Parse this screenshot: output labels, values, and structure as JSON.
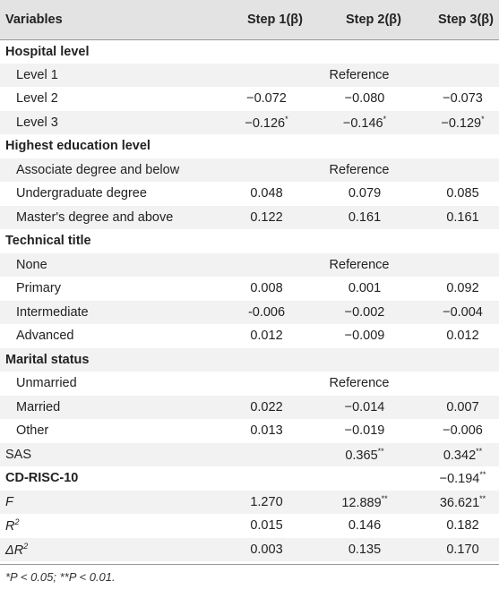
{
  "header": {
    "variables": "Variables",
    "step1": "Step 1(β)",
    "step2": "Step 2(β)",
    "step3": "Step 3(β)"
  },
  "rows": [
    {
      "label": "Hospital level",
      "type": "head",
      "s1": "",
      "s2": "",
      "s3": ""
    },
    {
      "label": "Level 1",
      "type": "sub",
      "ref": "Reference"
    },
    {
      "label": "Level 2",
      "type": "sub",
      "s1": "−0.072",
      "s2": "−0.080",
      "s3": "−0.073"
    },
    {
      "label": "Level 3",
      "type": "sub",
      "s1": "−0.126",
      "s1sup": "*",
      "s2": "−0.146",
      "s2sup": "*",
      "s3": "−0.129",
      "s3sup": "*"
    },
    {
      "label": "Highest education level",
      "type": "head"
    },
    {
      "label": "Associate degree and below",
      "type": "sub",
      "ref": "Reference"
    },
    {
      "label": "Undergraduate degree",
      "type": "sub",
      "s1": "0.048",
      "s2": "0.079",
      "s3": "0.085"
    },
    {
      "label": "Master's degree and above",
      "type": "sub",
      "s1": "0.122",
      "s2": "0.161",
      "s3": "0.161"
    },
    {
      "label": "Technical title",
      "type": "head"
    },
    {
      "label": "None",
      "type": "sub",
      "ref": "Reference"
    },
    {
      "label": "Primary",
      "type": "sub",
      "s1": "0.008",
      "s2": "0.001",
      "s3": "0.092"
    },
    {
      "label": "Intermediate",
      "type": "sub",
      "s1": "-0.006",
      "s2": "−0.002",
      "s3": "−0.004"
    },
    {
      "label": "Advanced",
      "type": "sub",
      "s1": "0.012",
      "s2": "−0.009",
      "s3": "0.012"
    },
    {
      "label": "Marital status",
      "type": "head"
    },
    {
      "label": "Unmarried",
      "type": "sub",
      "ref": "Reference"
    },
    {
      "label": "Married",
      "type": "sub",
      "s1": "0.022",
      "s2": "−0.014",
      "s3": "0.007"
    },
    {
      "label": "Other",
      "type": "sub",
      "s1": "0.013",
      "s2": "−0.019",
      "s3": "−0.006"
    },
    {
      "label": "SAS",
      "type": "plain",
      "s1": "",
      "s2": "0.365",
      "s2sup": "**",
      "s3": "0.342",
      "s3sup": "**"
    },
    {
      "label": "CD-RISC-10",
      "type": "head",
      "s1": "",
      "s2": "",
      "s3": "−0.194",
      "s3sup": "**"
    },
    {
      "label": "F",
      "type": "ital",
      "s1": "1.270",
      "s2": "12.889",
      "s2sup": "**",
      "s3": "36.621",
      "s3sup": "**"
    },
    {
      "label": "R",
      "labelsup": "2",
      "type": "ital",
      "s1": "0.015",
      "s2": "0.146",
      "s3": "0.182"
    },
    {
      "label": "ΔR",
      "labelsup": "2",
      "type": "ital",
      "s1": "0.003",
      "s2": "0.135",
      "s3": "0.170"
    }
  ],
  "footnote": "*P < 0.05; **P < 0.01."
}
